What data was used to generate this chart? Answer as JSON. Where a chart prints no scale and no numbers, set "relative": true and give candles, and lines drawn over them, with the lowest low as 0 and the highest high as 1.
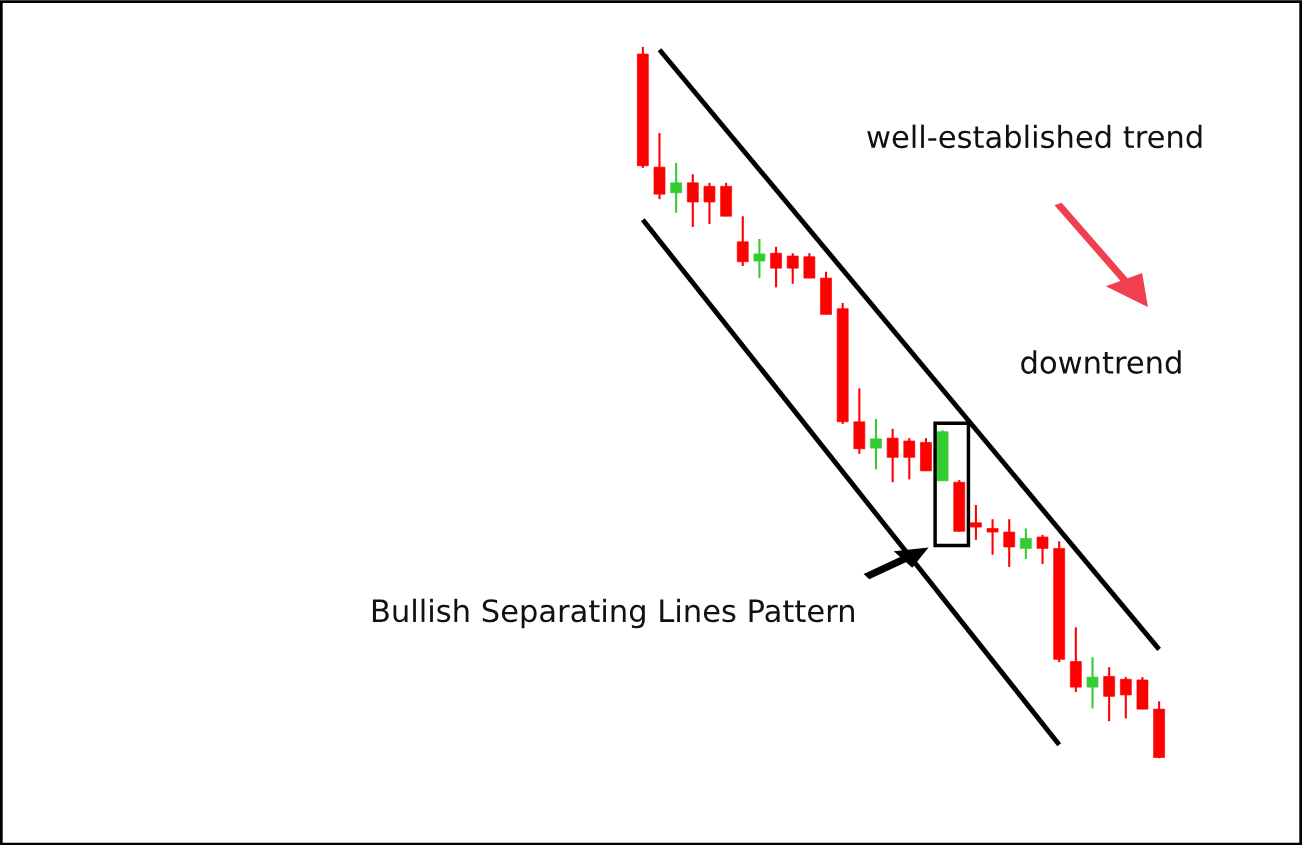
{
  "chart_data": {
    "type": "candlestick",
    "relative": true,
    "categories": [
      null,
      null,
      null,
      null,
      null,
      null,
      null,
      null,
      null,
      null,
      null,
      null,
      null,
      null,
      null,
      null,
      null,
      null,
      null,
      null,
      null,
      null,
      null,
      null,
      null,
      null,
      null,
      null,
      null,
      null,
      null,
      null
    ],
    "ohlc": [
      [
        0.99,
        1.0,
        0.83,
        0.833
      ],
      [
        0.831,
        0.879,
        0.786,
        0.793
      ],
      [
        0.795,
        0.837,
        0.767,
        0.809
      ],
      [
        0.809,
        0.821,
        0.747,
        0.782
      ],
      [
        0.804,
        0.809,
        0.751,
        0.782
      ],
      [
        0.804,
        0.809,
        0.762,
        0.762
      ],
      [
        0.726,
        0.762,
        0.692,
        0.698
      ],
      [
        0.699,
        0.73,
        0.675,
        0.709
      ],
      [
        0.71,
        0.719,
        0.662,
        0.689
      ],
      [
        0.706,
        0.71,
        0.667,
        0.689
      ],
      [
        0.705,
        0.71,
        0.675,
        0.675
      ],
      [
        0.675,
        0.684,
        0.624,
        0.624
      ],
      [
        0.632,
        0.64,
        0.47,
        0.473
      ],
      [
        0.473,
        0.52,
        0.428,
        0.435
      ],
      [
        0.436,
        0.477,
        0.406,
        0.449
      ],
      [
        0.45,
        0.463,
        0.388,
        0.423
      ],
      [
        0.446,
        0.45,
        0.392,
        0.423
      ],
      [
        0.444,
        0.45,
        0.404,
        0.404
      ],
      [
        0.39,
        0.461,
        0.39,
        0.459
      ],
      [
        0.388,
        0.391,
        0.319,
        0.319
      ],
      [
        0.331,
        0.356,
        0.307,
        0.325
      ],
      [
        0.323,
        0.336,
        0.286,
        0.318
      ],
      [
        0.318,
        0.336,
        0.269,
        0.297
      ],
      [
        0.295,
        0.323,
        0.28,
        0.309
      ],
      [
        0.311,
        0.314,
        0.273,
        0.295
      ],
      [
        0.295,
        0.305,
        0.135,
        0.139
      ],
      [
        0.136,
        0.184,
        0.093,
        0.1
      ],
      [
        0.1,
        0.142,
        0.07,
        0.114
      ],
      [
        0.115,
        0.128,
        0.052,
        0.087
      ],
      [
        0.111,
        0.114,
        0.056,
        0.089
      ],
      [
        0.11,
        0.114,
        0.069,
        0.069
      ],
      [
        0.069,
        0.08,
        0.0,
        0.001
      ]
    ],
    "colors": [
      "#ff0000",
      "#ff0000",
      "#33cc33",
      "#ff0000",
      "#ff0000",
      "#ff0000",
      "#ff0000",
      "#33cc33",
      "#ff0000",
      "#ff0000",
      "#ff0000",
      "#ff0000",
      "#ff0000",
      "#ff0000",
      "#33cc33",
      "#ff0000",
      "#ff0000",
      "#ff0000",
      "#33cc33",
      "#ff0000",
      "#ff0000",
      "#ff0000",
      "#ff0000",
      "#33cc33",
      "#ff0000",
      "#ff0000",
      "#ff0000",
      "#33cc33",
      "#ff0000",
      "#ff0000",
      "#ff0000",
      "#ff0000"
    ],
    "series": [
      {
        "type": "line",
        "color": "#000000",
        "values": [
          null,
          0.996,
          null,
          null,
          null,
          null,
          null,
          null,
          null,
          null,
          null,
          null,
          null,
          null,
          null,
          null,
          null,
          null,
          null,
          null,
          null,
          null,
          null,
          null,
          null,
          null,
          null,
          null,
          null,
          null,
          null,
          0.153
        ]
      },
      {
        "type": "line",
        "color": "#000000",
        "values": [
          0.757,
          null,
          null,
          null,
          null,
          null,
          null,
          null,
          null,
          null,
          null,
          null,
          null,
          null,
          null,
          null,
          null,
          null,
          null,
          null,
          null,
          null,
          null,
          null,
          null,
          0.019,
          null,
          null,
          null,
          null,
          null,
          null
        ]
      }
    ],
    "annotations": [
      "well-established trend",
      "downtrend",
      "Bullish Separating Lines Pattern"
    ]
  }
}
